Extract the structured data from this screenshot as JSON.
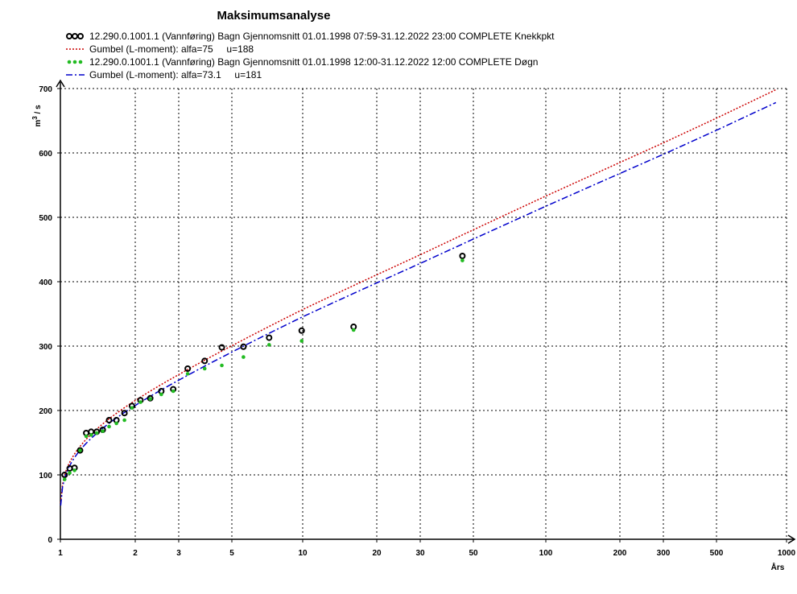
{
  "chart_data": {
    "type": "scatter",
    "title": "Maksimumsanalyse",
    "xlabel": "Års",
    "ylabel": "m³ / s",
    "x_scale": "gumbel",
    "xlim": [
      1,
      1000
    ],
    "ylim": [
      0,
      700
    ],
    "grid": true,
    "legend_position": "top",
    "x_ticks": [
      {
        "value": 1,
        "label": "1"
      },
      {
        "value": 2,
        "label": "2"
      },
      {
        "value": 3,
        "label": "3"
      },
      {
        "value": 5,
        "label": "5"
      },
      {
        "value": 10,
        "label": "10"
      },
      {
        "value": 20,
        "label": "20"
      },
      {
        "value": 30,
        "label": "30"
      },
      {
        "value": 50,
        "label": "50"
      },
      {
        "value": 100,
        "label": "100"
      },
      {
        "value": 200,
        "label": "200"
      },
      {
        "value": 300,
        "label": "300"
      },
      {
        "value": 500,
        "label": "500"
      },
      {
        "value": 1000,
        "label": "1000"
      }
    ],
    "y_ticks": [
      0,
      100,
      200,
      300,
      400,
      500,
      600,
      700
    ],
    "series": [
      {
        "name": "12.290.0.1001.1 (Vannføring) Bagn Gjennomsnitt 01.01.1998 07:59-31.12.2022 23:00 COMPLETE Knekkpkt",
        "kind": "points",
        "marker": "ring",
        "color": "#000000",
        "points": [
          [
            1.04,
            100
          ],
          [
            1.09,
            110
          ],
          [
            1.14,
            111
          ],
          [
            1.2,
            138
          ],
          [
            1.27,
            165
          ],
          [
            1.33,
            167
          ],
          [
            1.4,
            167
          ],
          [
            1.48,
            170
          ],
          [
            1.57,
            185
          ],
          [
            1.68,
            185
          ],
          [
            1.81,
            196
          ],
          [
            1.94,
            207
          ],
          [
            2.1,
            216
          ],
          [
            2.3,
            219
          ],
          [
            2.55,
            230
          ],
          [
            2.85,
            233
          ],
          [
            3.27,
            265
          ],
          [
            3.85,
            277
          ],
          [
            4.54,
            298
          ],
          [
            5.6,
            299
          ],
          [
            7.2,
            313
          ],
          [
            9.9,
            324
          ],
          [
            16.1,
            330
          ],
          [
            45.0,
            440
          ]
        ]
      },
      {
        "name": "Gumbel (L-moment): alfa=75     u=188",
        "kind": "line",
        "style": "dotted",
        "color": "#cc0000",
        "alpha": 75,
        "u": 188
      },
      {
        "name": "12.290.0.1001.1 (Vannføring) Bagn Gjennomsnitt 01.01.1998 12:00-31.12.2022 12:00 COMPLETE Døgn",
        "kind": "points",
        "marker": "dot",
        "color": "#22bb22",
        "points": [
          [
            1.04,
            93
          ],
          [
            1.09,
            103
          ],
          [
            1.14,
            107
          ],
          [
            1.2,
            138
          ],
          [
            1.27,
            160
          ],
          [
            1.33,
            162
          ],
          [
            1.4,
            165
          ],
          [
            1.48,
            168
          ],
          [
            1.57,
            175
          ],
          [
            1.68,
            180
          ],
          [
            1.81,
            185
          ],
          [
            1.94,
            204
          ],
          [
            2.1,
            213
          ],
          [
            2.3,
            218
          ],
          [
            2.55,
            225
          ],
          [
            2.85,
            230
          ],
          [
            3.27,
            257
          ],
          [
            3.85,
            265
          ],
          [
            4.54,
            270
          ],
          [
            5.6,
            283
          ],
          [
            7.2,
            302
          ],
          [
            9.9,
            308
          ],
          [
            16.1,
            325
          ],
          [
            45.0,
            433
          ]
        ]
      },
      {
        "name": "Gumbel (L-moment): alfa=73.1     u=181",
        "kind": "line",
        "style": "dash-dot",
        "color": "#0000cc",
        "alpha": 73.1,
        "u": 181
      }
    ]
  }
}
